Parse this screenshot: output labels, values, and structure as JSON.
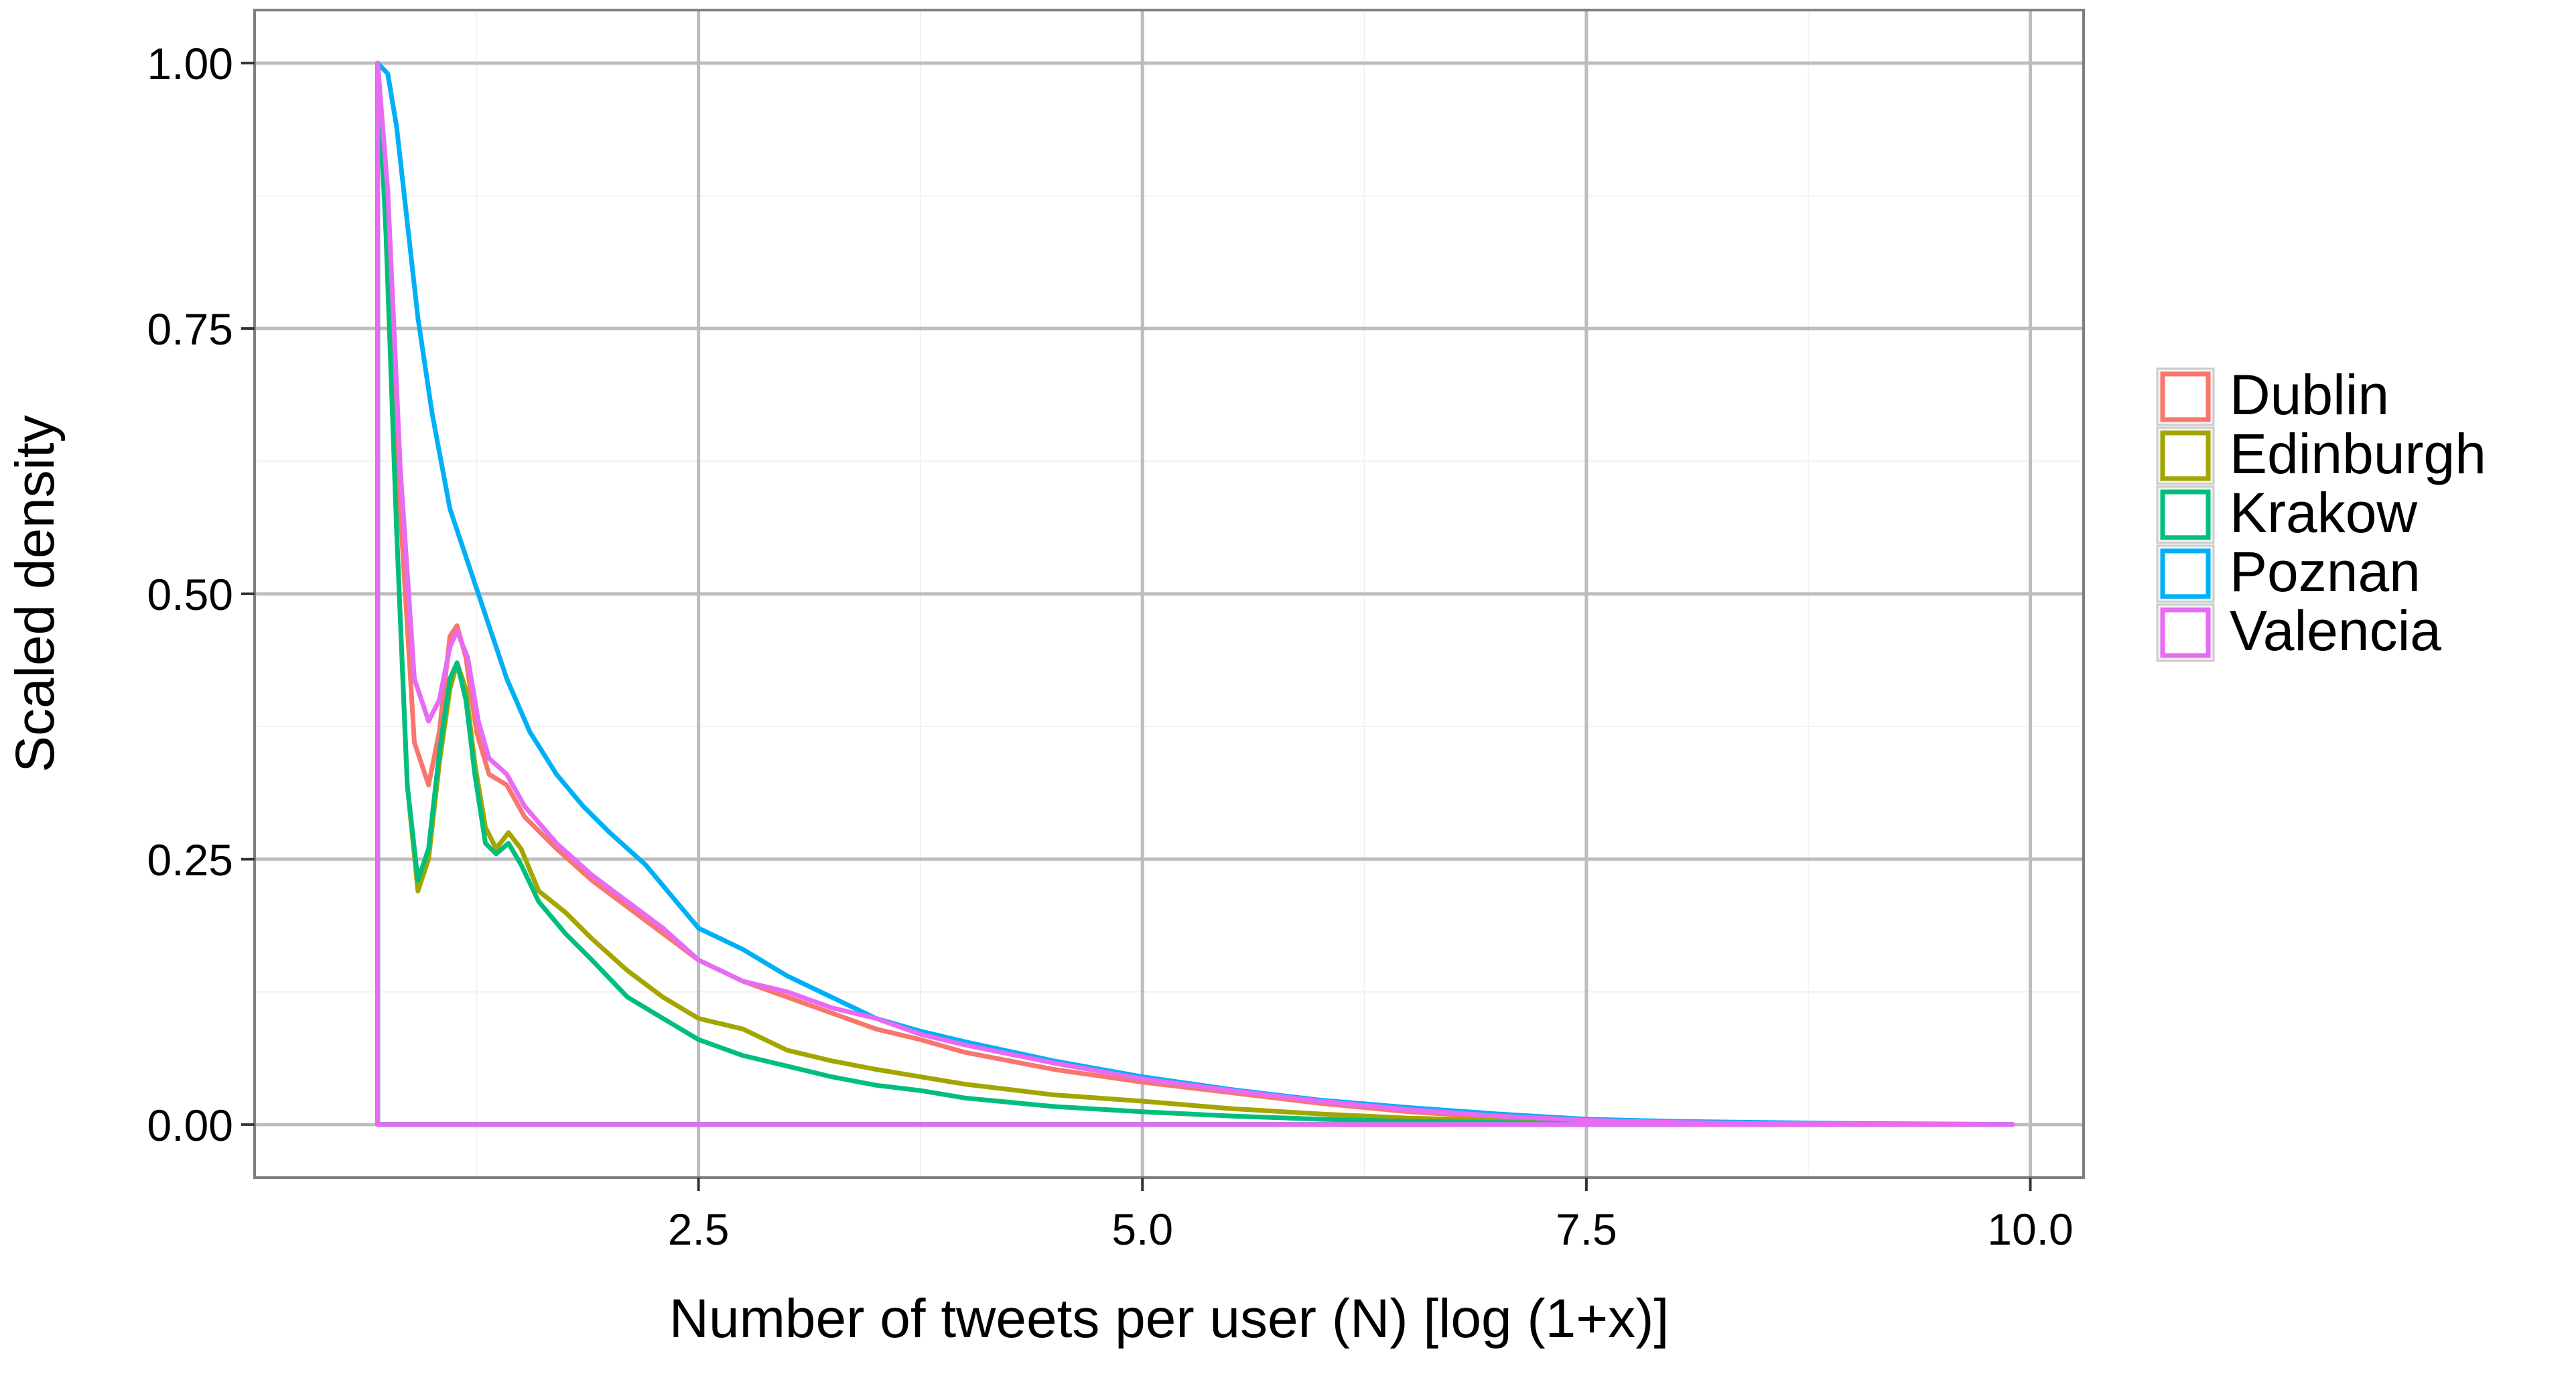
{
  "chart_data": {
    "type": "line",
    "title": "",
    "xlabel": "Number of tweets per user (N) [log (1+x)]",
    "ylabel": "Scaled density",
    "xlim": [
      0.0,
      10.3
    ],
    "ylim": [
      -0.05,
      1.05
    ],
    "x_major_ticks": [
      2.5,
      5.0,
      7.5,
      10.0
    ],
    "x_tick_labels": [
      "2.5",
      "5.0",
      "7.5",
      "10.0"
    ],
    "y_major_ticks": [
      0.0,
      0.25,
      0.5,
      0.75,
      1.0
    ],
    "y_tick_labels": [
      "0.00",
      "0.25",
      "0.50",
      "0.75",
      "1.00"
    ],
    "x_minor_ticks": [
      1.25,
      3.75,
      6.25,
      8.75
    ],
    "y_minor_ticks": [
      0.125,
      0.375,
      0.625,
      0.875
    ],
    "grid": true,
    "legend": {
      "placement": "right",
      "glyph": "outlined square"
    },
    "series": [
      {
        "name": "Dublin",
        "color": "#F8766D",
        "points": [
          [
            0.693,
            1.0
          ],
          [
            0.75,
            0.86
          ],
          [
            0.82,
            0.58
          ],
          [
            0.9,
            0.36
          ],
          [
            0.98,
            0.32
          ],
          [
            1.04,
            0.37
          ],
          [
            1.1,
            0.46
          ],
          [
            1.14,
            0.47
          ],
          [
            1.19,
            0.44
          ],
          [
            1.25,
            0.37
          ],
          [
            1.32,
            0.33
          ],
          [
            1.42,
            0.32
          ],
          [
            1.52,
            0.29
          ],
          [
            1.7,
            0.26
          ],
          [
            1.9,
            0.23
          ],
          [
            2.1,
            0.205
          ],
          [
            2.3,
            0.18
          ],
          [
            2.5,
            0.155
          ],
          [
            2.75,
            0.135
          ],
          [
            3.0,
            0.12
          ],
          [
            3.25,
            0.105
          ],
          [
            3.5,
            0.09
          ],
          [
            3.75,
            0.08
          ],
          [
            4.0,
            0.068
          ],
          [
            4.5,
            0.052
          ],
          [
            5.0,
            0.04
          ],
          [
            5.5,
            0.03
          ],
          [
            6.0,
            0.02
          ],
          [
            6.5,
            0.012
          ],
          [
            7.0,
            0.007
          ],
          [
            7.5,
            0.004
          ],
          [
            8.0,
            0.002
          ],
          [
            8.5,
            0.001
          ],
          [
            9.0,
            0.0005
          ],
          [
            9.5,
            0.0002
          ],
          [
            9.9,
            0.0
          ]
        ]
      },
      {
        "name": "Edinburgh",
        "color": "#A3A500",
        "points": [
          [
            0.693,
            1.0
          ],
          [
            0.74,
            0.84
          ],
          [
            0.8,
            0.56
          ],
          [
            0.86,
            0.32
          ],
          [
            0.92,
            0.22
          ],
          [
            0.98,
            0.25
          ],
          [
            1.04,
            0.34
          ],
          [
            1.1,
            0.41
          ],
          [
            1.14,
            0.435
          ],
          [
            1.19,
            0.41
          ],
          [
            1.24,
            0.34
          ],
          [
            1.3,
            0.28
          ],
          [
            1.36,
            0.26
          ],
          [
            1.43,
            0.275
          ],
          [
            1.5,
            0.26
          ],
          [
            1.6,
            0.22
          ],
          [
            1.75,
            0.2
          ],
          [
            1.9,
            0.175
          ],
          [
            2.1,
            0.145
          ],
          [
            2.3,
            0.12
          ],
          [
            2.5,
            0.1
          ],
          [
            2.75,
            0.09
          ],
          [
            3.0,
            0.07
          ],
          [
            3.25,
            0.06
          ],
          [
            3.5,
            0.052
          ],
          [
            3.75,
            0.045
          ],
          [
            4.0,
            0.038
          ],
          [
            4.5,
            0.028
          ],
          [
            5.0,
            0.022
          ],
          [
            5.5,
            0.015
          ],
          [
            6.0,
            0.01
          ],
          [
            6.5,
            0.006
          ],
          [
            7.0,
            0.004
          ],
          [
            7.5,
            0.002
          ],
          [
            8.0,
            0.001
          ],
          [
            8.5,
            0.0005
          ],
          [
            9.0,
            0.0002
          ],
          [
            9.9,
            0.0
          ]
        ]
      },
      {
        "name": "Krakow",
        "color": "#00BF7D",
        "points": [
          [
            0.693,
            1.0
          ],
          [
            0.74,
            0.84
          ],
          [
            0.8,
            0.56
          ],
          [
            0.86,
            0.32
          ],
          [
            0.92,
            0.23
          ],
          [
            0.98,
            0.26
          ],
          [
            1.04,
            0.35
          ],
          [
            1.1,
            0.42
          ],
          [
            1.14,
            0.435
          ],
          [
            1.19,
            0.4
          ],
          [
            1.24,
            0.33
          ],
          [
            1.3,
            0.265
          ],
          [
            1.36,
            0.255
          ],
          [
            1.43,
            0.265
          ],
          [
            1.5,
            0.245
          ],
          [
            1.6,
            0.21
          ],
          [
            1.75,
            0.18
          ],
          [
            1.9,
            0.155
          ],
          [
            2.1,
            0.12
          ],
          [
            2.3,
            0.1
          ],
          [
            2.5,
            0.08
          ],
          [
            2.75,
            0.065
          ],
          [
            3.0,
            0.055
          ],
          [
            3.25,
            0.045
          ],
          [
            3.5,
            0.037
          ],
          [
            3.75,
            0.032
          ],
          [
            4.0,
            0.025
          ],
          [
            4.5,
            0.017
          ],
          [
            5.0,
            0.012
          ],
          [
            5.5,
            0.008
          ],
          [
            6.0,
            0.005
          ],
          [
            6.5,
            0.003
          ],
          [
            7.0,
            0.002
          ],
          [
            7.5,
            0.001
          ],
          [
            8.0,
            0.0005
          ],
          [
            9.9,
            0.0
          ]
        ]
      },
      {
        "name": "Poznan",
        "color": "#00B0F6",
        "points": [
          [
            0.693,
            1.0
          ],
          [
            0.75,
            0.99
          ],
          [
            0.8,
            0.94
          ],
          [
            0.86,
            0.85
          ],
          [
            0.92,
            0.76
          ],
          [
            1.0,
            0.67
          ],
          [
            1.1,
            0.58
          ],
          [
            1.2,
            0.53
          ],
          [
            1.3,
            0.48
          ],
          [
            1.42,
            0.42
          ],
          [
            1.55,
            0.37
          ],
          [
            1.7,
            0.33
          ],
          [
            1.85,
            0.3
          ],
          [
            2.0,
            0.275
          ],
          [
            2.2,
            0.245
          ],
          [
            2.35,
            0.215
          ],
          [
            2.5,
            0.185
          ],
          [
            2.75,
            0.165
          ],
          [
            3.0,
            0.14
          ],
          [
            3.25,
            0.12
          ],
          [
            3.5,
            0.1
          ],
          [
            3.75,
            0.088
          ],
          [
            4.0,
            0.078
          ],
          [
            4.5,
            0.06
          ],
          [
            5.0,
            0.045
          ],
          [
            5.5,
            0.033
          ],
          [
            6.0,
            0.023
          ],
          [
            6.5,
            0.016
          ],
          [
            7.0,
            0.01
          ],
          [
            7.5,
            0.005
          ],
          [
            8.0,
            0.003
          ],
          [
            8.5,
            0.002
          ],
          [
            9.0,
            0.001
          ],
          [
            9.5,
            0.0005
          ],
          [
            9.9,
            0.0
          ]
        ]
      },
      {
        "name": "Valencia",
        "color": "#E76BF3",
        "points": [
          [
            0.693,
            1.0
          ],
          [
            0.75,
            0.88
          ],
          [
            0.82,
            0.62
          ],
          [
            0.9,
            0.42
          ],
          [
            0.98,
            0.38
          ],
          [
            1.04,
            0.4
          ],
          [
            1.1,
            0.45
          ],
          [
            1.14,
            0.465
          ],
          [
            1.2,
            0.44
          ],
          [
            1.26,
            0.38
          ],
          [
            1.32,
            0.345
          ],
          [
            1.42,
            0.33
          ],
          [
            1.52,
            0.3
          ],
          [
            1.7,
            0.265
          ],
          [
            1.9,
            0.235
          ],
          [
            2.1,
            0.21
          ],
          [
            2.3,
            0.185
          ],
          [
            2.5,
            0.155
          ],
          [
            2.75,
            0.135
          ],
          [
            3.0,
            0.125
          ],
          [
            3.25,
            0.11
          ],
          [
            3.5,
            0.1
          ],
          [
            3.75,
            0.085
          ],
          [
            4.0,
            0.075
          ],
          [
            4.5,
            0.058
          ],
          [
            5.0,
            0.043
          ],
          [
            5.5,
            0.032
          ],
          [
            6.0,
            0.022
          ],
          [
            6.5,
            0.014
          ],
          [
            7.0,
            0.008
          ],
          [
            7.5,
            0.004
          ],
          [
            8.0,
            0.002
          ],
          [
            8.5,
            0.001
          ],
          [
            9.0,
            0.0005
          ],
          [
            9.9,
            0.0
          ]
        ]
      }
    ]
  }
}
